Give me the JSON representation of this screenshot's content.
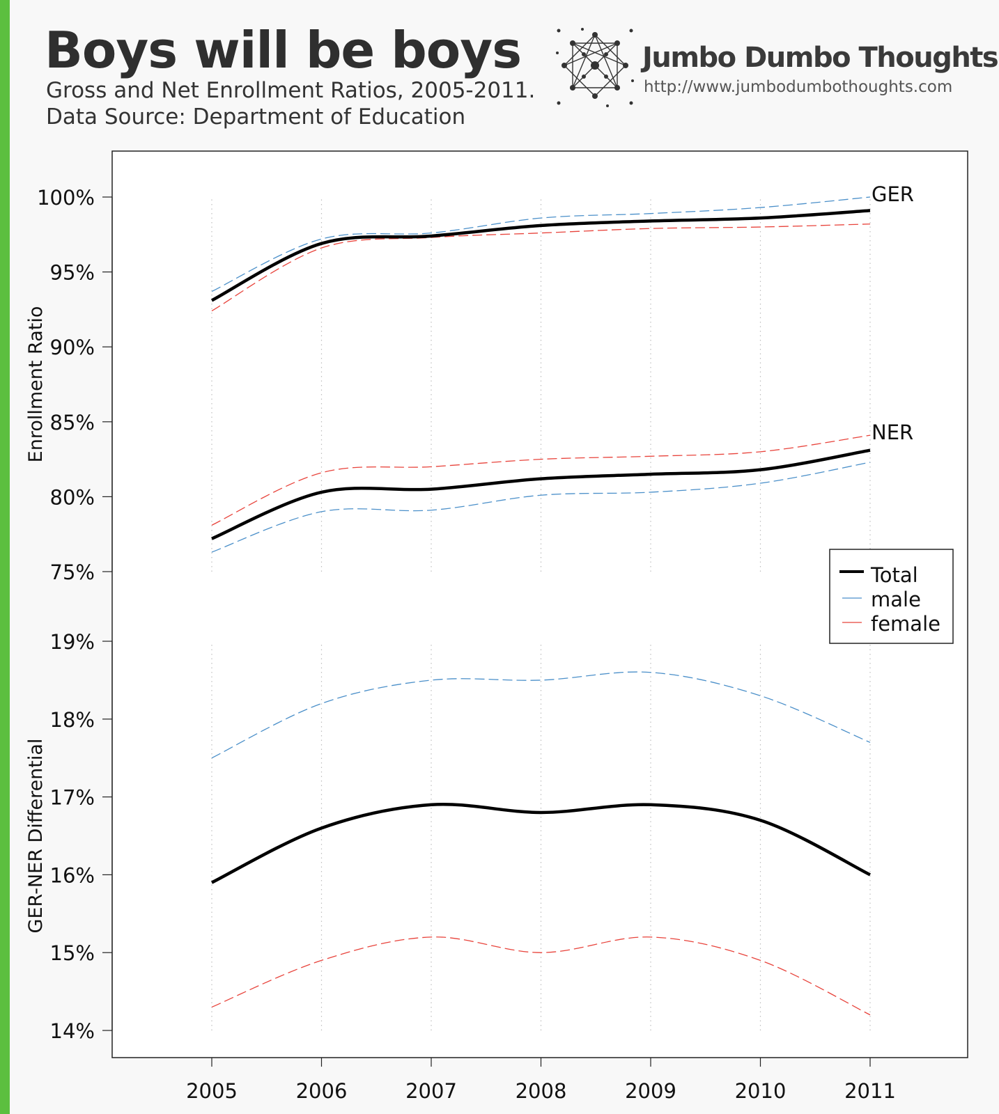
{
  "page": {
    "title": "Boys will be boys",
    "subtitle_line1": "Gross and Net Enrollment Ratios, 2005-2011.",
    "subtitle_line2": "Data Source: Department of Education",
    "brand_name": "Jumbo Dumbo Thoughts",
    "brand_url": "http://www.jumbodumbothoughts.com",
    "accent_color": "#5cbf3f"
  },
  "colors": {
    "total": "#000000",
    "male": "#4a8fc9",
    "female": "#e8433b"
  },
  "chart_data": [
    {
      "type": "line",
      "panel": "top",
      "ylabel": "Enrollment Ratio",
      "ylim": [
        75,
        100
      ],
      "yticks": [
        75,
        80,
        85,
        90,
        95,
        100
      ],
      "ytick_labels": [
        "75%",
        "80%",
        "85%",
        "90%",
        "95%",
        "100%"
      ],
      "x": [
        2005,
        2006,
        2007,
        2008,
        2009,
        2010,
        2011
      ],
      "groups": [
        {
          "label": "GER",
          "series": [
            {
              "key": "total",
              "values": [
                93.1,
                96.9,
                97.4,
                98.1,
                98.4,
                98.6,
                99.1
              ]
            },
            {
              "key": "male",
              "values": [
                93.7,
                97.2,
                97.6,
                98.6,
                98.9,
                99.3,
                100.0
              ]
            },
            {
              "key": "female",
              "values": [
                92.4,
                96.6,
                97.3,
                97.6,
                97.9,
                98.0,
                98.2
              ]
            }
          ]
        },
        {
          "label": "NER",
          "series": [
            {
              "key": "total",
              "values": [
                77.2,
                80.3,
                80.5,
                81.2,
                81.5,
                81.8,
                83.1
              ]
            },
            {
              "key": "male",
              "values": [
                76.3,
                79.0,
                79.1,
                80.1,
                80.3,
                80.9,
                82.3
              ]
            },
            {
              "key": "female",
              "values": [
                78.1,
                81.6,
                82.0,
                82.5,
                82.7,
                83.0,
                84.1
              ]
            }
          ]
        }
      ],
      "legend": {
        "position": "right",
        "entries": [
          {
            "key": "total",
            "label": "Total"
          },
          {
            "key": "male",
            "label": "male"
          },
          {
            "key": "female",
            "label": "female"
          }
        ]
      }
    },
    {
      "type": "line",
      "panel": "bottom",
      "ylabel": "GER-NER Differential",
      "ylim": [
        14,
        19
      ],
      "yticks": [
        14,
        15,
        16,
        17,
        18,
        19
      ],
      "ytick_labels": [
        "14%",
        "15%",
        "16%",
        "17%",
        "18%",
        "19%"
      ],
      "x": [
        2005,
        2006,
        2007,
        2008,
        2009,
        2010,
        2011
      ],
      "xtick_labels": [
        "2005",
        "2006",
        "2007",
        "2008",
        "2009",
        "2010",
        "2011"
      ],
      "series": [
        {
          "key": "total",
          "values": [
            15.9,
            16.6,
            16.9,
            16.8,
            16.9,
            16.7,
            16.0
          ]
        },
        {
          "key": "male",
          "values": [
            17.5,
            18.2,
            18.5,
            18.5,
            18.6,
            18.3,
            17.7
          ]
        },
        {
          "key": "female",
          "values": [
            14.3,
            14.9,
            15.2,
            15.0,
            15.2,
            14.9,
            14.2
          ]
        }
      ]
    }
  ]
}
